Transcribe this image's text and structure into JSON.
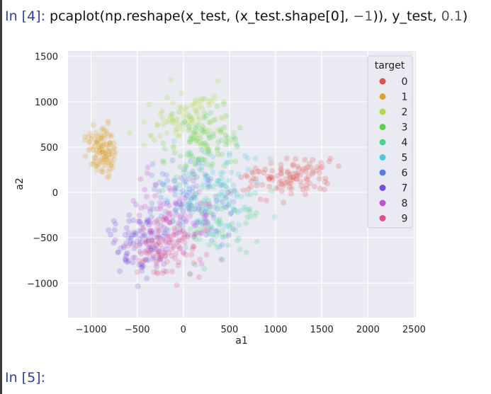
{
  "cells": {
    "cell4": {
      "prompt": "In [4]:",
      "code_parts": [
        "pcaplot(np.reshape(x_test, (x_test.shape[0], ",
        "−1",
        ")), y_test, ",
        "0.1",
        ")"
      ]
    },
    "cell5": {
      "prompt": "In [5]:"
    }
  },
  "chart_data": {
    "type": "scatter",
    "xlabel": "a1",
    "ylabel": "a2",
    "xlim": [
      -1250,
      2520
    ],
    "ylim": [
      -1380,
      1560
    ],
    "x_ticks": [
      -1000,
      -500,
      0,
      500,
      1000,
      1500,
      2000,
      2500
    ],
    "x_tick_labels": [
      "−1000",
      "−500",
      "0",
      "500",
      "1000",
      "1500",
      "2000",
      "2500"
    ],
    "y_ticks": [
      1500,
      1000,
      500,
      0,
      -500,
      -1000
    ],
    "y_tick_labels": [
      "1500",
      "1000",
      "500",
      "0",
      "−500",
      "−1000"
    ],
    "point_alpha": 0.1,
    "grid": true,
    "legend": {
      "title": "target",
      "placement": "top-right",
      "entries": [
        "0",
        "1",
        "2",
        "3",
        "4",
        "5",
        "6",
        "7",
        "8",
        "9"
      ]
    },
    "series": [
      {
        "name": "0",
        "color": "#d9534f",
        "center": [
          1100,
          180
        ],
        "spread": [
          380,
          170
        ],
        "count": 110
      },
      {
        "name": "1",
        "color": "#d9a43a",
        "center": [
          -880,
          470
        ],
        "spread": [
          120,
          200
        ],
        "count": 130
      },
      {
        "name": "2",
        "color": "#b2d94b",
        "center": [
          50,
          800
        ],
        "spread": [
          380,
          270
        ],
        "count": 100
      },
      {
        "name": "3",
        "color": "#60d04f",
        "center": [
          250,
          580
        ],
        "spread": [
          330,
          310
        ],
        "count": 100
      },
      {
        "name": "4",
        "color": "#4fd38f",
        "center": [
          300,
          -300
        ],
        "spread": [
          400,
          380
        ],
        "count": 100
      },
      {
        "name": "5",
        "color": "#4ec9d8",
        "center": [
          350,
          0
        ],
        "spread": [
          420,
          400
        ],
        "count": 100
      },
      {
        "name": "6",
        "color": "#5b7ee0",
        "center": [
          100,
          -100
        ],
        "spread": [
          400,
          350
        ],
        "count": 100
      },
      {
        "name": "7",
        "color": "#7650d8",
        "center": [
          -450,
          -550
        ],
        "spread": [
          250,
          300
        ],
        "count": 110
      },
      {
        "name": "8",
        "color": "#c64fd6",
        "center": [
          -100,
          -300
        ],
        "spread": [
          400,
          350
        ],
        "count": 100
      },
      {
        "name": "9",
        "color": "#d9508f",
        "center": [
          -150,
          -600
        ],
        "spread": [
          300,
          300
        ],
        "count": 100
      }
    ]
  }
}
